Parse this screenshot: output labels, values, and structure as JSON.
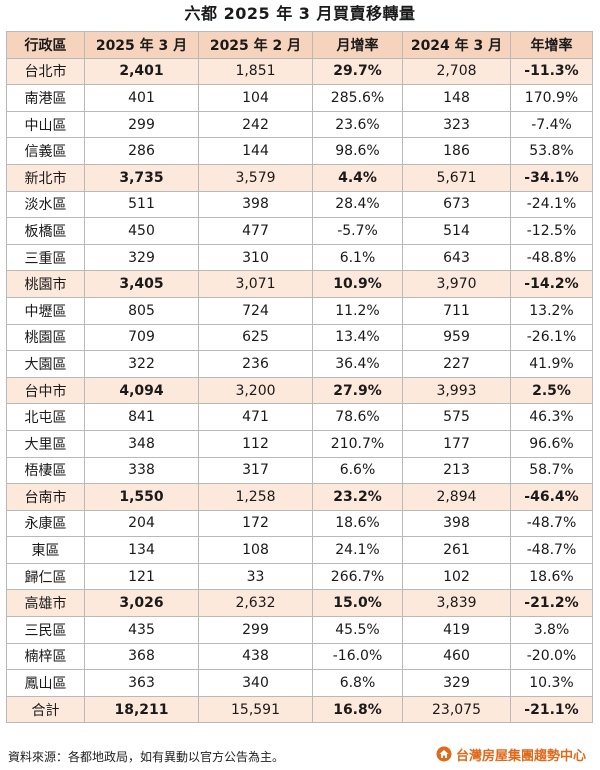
{
  "title": "六都 2025 年 3 月買賣移轉量",
  "headers": [
    "行政區",
    "2025 年 3 月",
    "2025 年 2 月",
    "月增率",
    "2024 年 3 月",
    "年增率"
  ],
  "rows": [
    {
      "type": "city",
      "cells": [
        "台北市",
        "2,401",
        "1,851",
        "29.7%",
        "2,708",
        "-11.3%"
      ]
    },
    {
      "type": "district",
      "cells": [
        "南港區",
        "401",
        "104",
        "285.6%",
        "148",
        "170.9%"
      ]
    },
    {
      "type": "district",
      "cells": [
        "中山區",
        "299",
        "242",
        "23.6%",
        "323",
        "-7.4%"
      ]
    },
    {
      "type": "district",
      "cells": [
        "信義區",
        "286",
        "144",
        "98.6%",
        "186",
        "53.8%"
      ]
    },
    {
      "type": "city",
      "cells": [
        "新北市",
        "3,735",
        "3,579",
        "4.4%",
        "5,671",
        "-34.1%"
      ]
    },
    {
      "type": "district",
      "cells": [
        "淡水區",
        "511",
        "398",
        "28.4%",
        "673",
        "-24.1%"
      ]
    },
    {
      "type": "district",
      "cells": [
        "板橋區",
        "450",
        "477",
        "-5.7%",
        "514",
        "-12.5%"
      ]
    },
    {
      "type": "district",
      "cells": [
        "三重區",
        "329",
        "310",
        "6.1%",
        "643",
        "-48.8%"
      ]
    },
    {
      "type": "city",
      "cells": [
        "桃園市",
        "3,405",
        "3,071",
        "10.9%",
        "3,970",
        "-14.2%"
      ]
    },
    {
      "type": "district",
      "cells": [
        "中壢區",
        "805",
        "724",
        "11.2%",
        "711",
        "13.2%"
      ]
    },
    {
      "type": "district",
      "cells": [
        "桃園區",
        "709",
        "625",
        "13.4%",
        "959",
        "-26.1%"
      ]
    },
    {
      "type": "district",
      "cells": [
        "大園區",
        "322",
        "236",
        "36.4%",
        "227",
        "41.9%"
      ]
    },
    {
      "type": "city",
      "cells": [
        "台中市",
        "4,094",
        "3,200",
        "27.9%",
        "3,993",
        "2.5%"
      ]
    },
    {
      "type": "district",
      "cells": [
        "北屯區",
        "841",
        "471",
        "78.6%",
        "575",
        "46.3%"
      ]
    },
    {
      "type": "district",
      "cells": [
        "大里區",
        "348",
        "112",
        "210.7%",
        "177",
        "96.6%"
      ]
    },
    {
      "type": "district",
      "cells": [
        "梧棲區",
        "338",
        "317",
        "6.6%",
        "213",
        "58.7%"
      ]
    },
    {
      "type": "city",
      "cells": [
        "台南市",
        "1,550",
        "1,258",
        "23.2%",
        "2,894",
        "-46.4%"
      ]
    },
    {
      "type": "district",
      "cells": [
        "永康區",
        "204",
        "172",
        "18.6%",
        "398",
        "-48.7%"
      ]
    },
    {
      "type": "district",
      "cells": [
        "東區",
        "134",
        "108",
        "24.1%",
        "261",
        "-48.7%"
      ]
    },
    {
      "type": "district",
      "cells": [
        "歸仁區",
        "121",
        "33",
        "266.7%",
        "102",
        "18.6%"
      ]
    },
    {
      "type": "city",
      "cells": [
        "高雄市",
        "3,026",
        "2,632",
        "15.0%",
        "3,839",
        "-21.2%"
      ]
    },
    {
      "type": "district",
      "cells": [
        "三民區",
        "435",
        "299",
        "45.5%",
        "419",
        "3.8%"
      ]
    },
    {
      "type": "district",
      "cells": [
        "楠梓區",
        "368",
        "438",
        "-16.0%",
        "460",
        "-20.0%"
      ]
    },
    {
      "type": "district",
      "cells": [
        "鳳山區",
        "363",
        "340",
        "6.8%",
        "329",
        "10.3%"
      ]
    },
    {
      "type": "total",
      "cells": [
        "合計",
        "18,211",
        "15,591",
        "16.8%",
        "23,075",
        "-21.1%"
      ]
    }
  ],
  "footer": {
    "source": "資料來源：各都地政局，如有異動以官方公告為主。",
    "brand": "台灣房屋集團趨勢中心",
    "brand_color": "#e06a1b"
  },
  "colors": {
    "header_bg": "#f6d3bd",
    "city_row_bg": "#fde9dc",
    "border": "#b9b9b9"
  },
  "icons": {
    "brand_logo": "house-logo-icon"
  }
}
